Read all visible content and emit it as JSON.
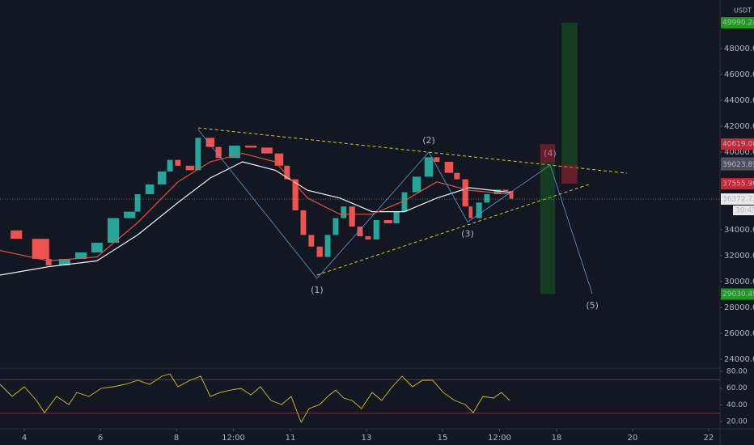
{
  "chart_data": [
    {
      "type": "candlestick",
      "x": [
        3.36,
        3.79,
        4.43,
        4.64,
        5.06,
        5.49,
        5.91,
        6.34,
        6.77,
        6.98,
        7.3,
        7.62,
        7.83,
        8.04,
        8.36,
        8.57,
        8.89,
        9.11,
        9.53,
        9.96,
        10.38,
        10.7,
        10.91,
        11.13,
        11.34,
        11.55,
        11.77,
        11.98,
        12.19,
        12.4,
        12.62,
        12.83,
        13.04,
        13.26,
        13.57,
        13.79,
        14.0,
        14.32,
        14.64,
        14.85,
        15.17,
        15.38,
        15.6,
        15.74,
        15.96,
        16.17,
        16.45,
        16.66,
        16.81
      ],
      "values": [
        33950,
        33300,
        31750,
        31250,
        31750,
        32250,
        33000,
        34900,
        35400,
        36750,
        37500,
        38500,
        39400,
        38950,
        38600,
        41100,
        40400,
        39550,
        40500,
        40350,
        39900,
        38950,
        37900,
        35500,
        33600,
        32700,
        31900,
        33600,
        34900,
        35800,
        34250,
        33500,
        33250,
        34750,
        34500,
        35400,
        36900,
        38100,
        39600,
        39250,
        38400,
        37900,
        35800,
        34900,
        36100,
        36750,
        37100,
        37000,
        36400
      ],
      "up_color": "#26a69a",
      "down_color": "#ef5350",
      "moving_averages": [
        {
          "color": "#f0f0f0",
          "x": [
            3.36,
            4.64,
            5.91,
            6.98,
            8.04,
            8.89,
            9.74,
            10.6,
            11.45,
            12.3,
            13.15,
            14.0,
            14.85,
            15.7,
            16.77
          ],
          "values": [
            30500,
            31150,
            31600,
            33600,
            36100,
            38000,
            39250,
            38600,
            37050,
            36450,
            35400,
            35400,
            36450,
            37250,
            36900
          ]
        },
        {
          "color": "#e0533c",
          "x": [
            3.36,
            4.64,
            5.91,
            6.98,
            8.04,
            8.89,
            9.74,
            10.6,
            11.45,
            12.3,
            13.15,
            14.0,
            14.85,
            15.7,
            16.77
          ],
          "values": [
            32400,
            31600,
            31900,
            34550,
            37700,
            39250,
            39900,
            39250,
            36450,
            35200,
            35200,
            36250,
            37700,
            37050,
            36750
          ]
        }
      ],
      "trendlines": [
        {
          "color": "#d6c62a",
          "x": [
            8.57,
            19.85
          ],
          "values": [
            41875,
            38375
          ]
        },
        {
          "color": "#d6c62a",
          "x": [
            11.7,
            18.85
          ],
          "values": [
            30500,
            37500
          ]
        }
      ],
      "waves": {
        "color": "#5b9bd5",
        "x": [
          8.57,
          11.7,
          14.64,
          15.66,
          17.83,
          18.94
        ],
        "values": [
          41750,
          30250,
          40000,
          34600,
          39000,
          29060
        ],
        "labels": [
          null,
          "(1)",
          "(2)",
          "(3)",
          "(4)",
          "(5)"
        ]
      },
      "positions": [
        {
          "x": [
            17.57,
            17.96
          ],
          "entry": 39156.31,
          "stop": 40619.08,
          "target": 29030.49
        },
        {
          "x": [
            18.13,
            18.55
          ],
          "entry": 39023.85,
          "stop": {
            "value": 37555.9,
            "label": "37555.90"
          },
          "target": 49990.24
        }
      ],
      "position_colors": {
        "entry": "#50535e",
        "stop": "#c62838",
        "target": "#1e9e1e"
      },
      "last_price": 36372.72,
      "countdown": "30:45",
      "currency": "USDT",
      "xlim": [
        3.36,
        22.3
      ],
      "ylim": [
        23312,
        51750
      ],
      "xticks": [
        4,
        6,
        8,
        {
          "value": 9.5,
          "label": "12:00"
        },
        11,
        13,
        15,
        {
          "value": 16.5,
          "label": "12:00"
        },
        18,
        20,
        22
      ],
      "yticks": [
        {
          "value": 24000,
          "label": "24000.00"
        },
        {
          "value": 26000,
          "label": "26000.00"
        },
        {
          "value": 28000,
          "label": "28000.00"
        },
        {
          "value": 30000,
          "label": "30000.00"
        },
        {
          "value": 32000,
          "label": "32000.00"
        },
        {
          "value": 34000,
          "label": "34000.00"
        },
        {
          "value": 40000,
          "label": "40000.00"
        },
        {
          "value": 42000,
          "label": "42000.00"
        },
        {
          "value": 44000,
          "label": "44000.00"
        },
        {
          "value": 46000,
          "label": "46000.00"
        },
        {
          "value": 48000,
          "label": "48000.00"
        }
      ]
    },
    {
      "type": "line",
      "x": [
        3.36,
        3.68,
        4,
        4.32,
        4.53,
        4.85,
        5.17,
        5.38,
        5.7,
        6.02,
        6.34,
        6.66,
        6.98,
        7.3,
        7.62,
        7.83,
        8.04,
        8.36,
        8.64,
        8.89,
        9.15,
        9.43,
        9.7,
        9.96,
        10.21,
        10.49,
        10.77,
        11.02,
        11.28,
        11.49,
        11.77,
        11.98,
        12.19,
        12.4,
        12.62,
        12.87,
        13.15,
        13.4,
        13.68,
        13.94,
        14.21,
        14.47,
        14.74,
        15.02,
        15.32,
        15.6,
        15.81,
        16.06,
        16.34,
        16.55,
        16.77
      ],
      "values": [
        64.5,
        50,
        61.6,
        45.2,
        30.6,
        50,
        40.3,
        54.8,
        50,
        59.7,
        61.6,
        64.5,
        69.4,
        64.5,
        74.2,
        77.1,
        61.6,
        69.4,
        74.2,
        50,
        54.8,
        57.7,
        59.7,
        51.9,
        61.6,
        45.2,
        40.3,
        50,
        19,
        35.5,
        40.3,
        50,
        57.7,
        48.1,
        45.2,
        35.5,
        54.8,
        45.2,
        61.6,
        74.2,
        61.6,
        69.4,
        69.4,
        54.8,
        45.2,
        40.3,
        30.6,
        50,
        48.1,
        54.8,
        45.2
      ],
      "color": "#d4c21f",
      "bands": [
        70,
        30
      ],
      "band_color": "#7a2e36",
      "xlim": [
        3.36,
        22.3
      ],
      "ylim": [
        11.3,
        83.9
      ],
      "yticks": [
        {
          "value": 80,
          "label": "80.00"
        },
        {
          "value": 60,
          "label": "60.00"
        },
        {
          "value": 40,
          "label": "40.00"
        },
        {
          "value": 20,
          "label": "20.00"
        }
      ]
    }
  ]
}
